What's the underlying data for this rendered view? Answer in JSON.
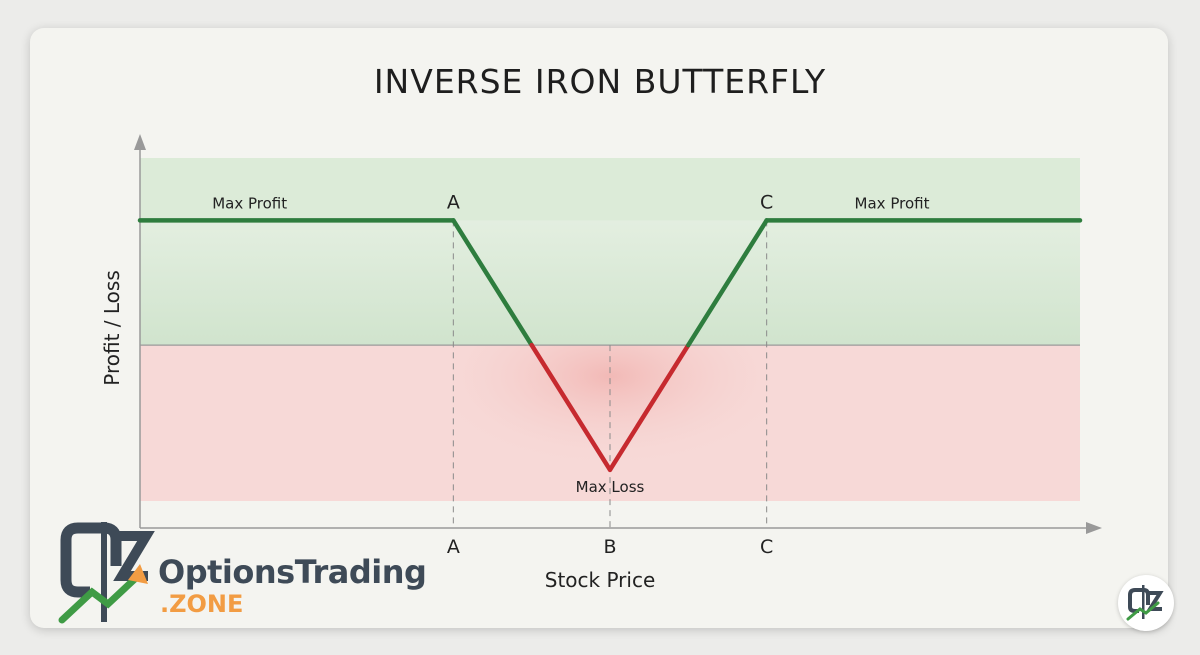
{
  "chart_data": {
    "type": "line",
    "title": "INVERSE IRON BUTTERFLY",
    "xlabel": "Stock Price",
    "ylabel": "Profit / Loss",
    "x_ticks": [
      "A",
      "B",
      "C"
    ],
    "x": [
      0,
      1,
      2,
      3,
      4,
      5,
      6
    ],
    "points": [
      {
        "x": 0,
        "y": 1
      },
      {
        "x": 2,
        "y": 1
      },
      {
        "x": 3,
        "y": -1
      },
      {
        "x": 4,
        "y": 1
      },
      {
        "x": 6,
        "y": 1
      }
    ],
    "xlim": [
      0,
      6
    ],
    "ylim": [
      -1.25,
      1.5
    ],
    "annotations": [
      {
        "text": "Max Profit",
        "x": 0.7,
        "y": 1
      },
      {
        "text": "A",
        "x": 2,
        "y": 1
      },
      {
        "text": "C",
        "x": 4,
        "y": 1
      },
      {
        "text": "Max Profit",
        "x": 4.8,
        "y": 1
      },
      {
        "text": "Max Loss",
        "x": 3,
        "y": -1
      }
    ],
    "colors": {
      "profit": "#2e7d3e",
      "loss": "#c62a2f",
      "profit_zone": "#dcebd8",
      "loss_zone": "#f7d9d7"
    },
    "grid": false
  },
  "logo": {
    "text_main": "OptionsTrading",
    "text_sub": ".ZONE",
    "icon": "options-trading-zone-logo-icon"
  }
}
